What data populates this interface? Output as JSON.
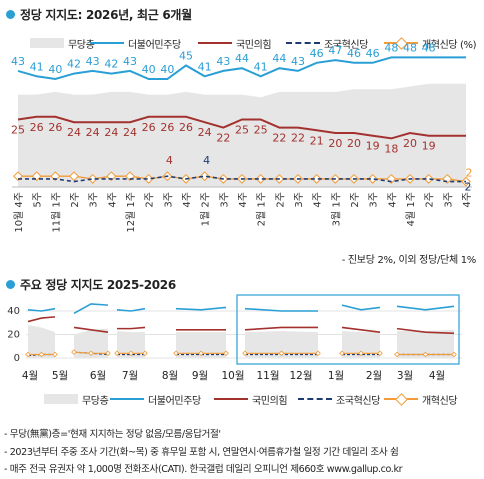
{
  "section1": {
    "title": "정당 지지도: 2026년, 최근 6개월"
  },
  "section2": {
    "title": "주요 정당 지지도 2025-2026"
  },
  "legend": [
    {
      "name": "무당층",
      "color": "#e6e6e6",
      "style": "area"
    },
    {
      "name": "더불어민주당",
      "color": "#2a9fd6",
      "style": "line"
    },
    {
      "name": "국민의힘",
      "color": "#a3322f",
      "style": "line"
    },
    {
      "name": "조국혁신당",
      "color": "#1f3b73",
      "style": "dashed"
    },
    {
      "name": "개혁신당 (%)",
      "color": "#f29b38",
      "style": "marker"
    }
  ],
  "legend2": [
    "무당층",
    "더불어민주당",
    "국민의힘",
    "조국혁신당",
    "개혁신당"
  ],
  "note": "- 진보당 2%, 이외 정당/단체 1%",
  "footnotes": [
    "- 무당(無黨)층='현재 지지하는 정당 없음/모름/응답거절'",
    "- 2023년부터 주중 조사 기간(화~목) 중 휴무일 포함 시, 연말연시·여름휴가철 일정 기간 데일리 조사 쉼",
    "- 매주 전국 유권자 약 1,000명 전화조사(CATI). 한국갤럽 데일리 오피니언 제660호 www.gallup.co.kr"
  ],
  "chart_data": [
    {
      "type": "line",
      "title": "정당 지지도: 2026년, 최근 6개월",
      "x": [
        "10월 4주",
        "5주",
        "11월 1주",
        "2주",
        "3주",
        "4주",
        "12월 1주",
        "2주",
        "3주",
        "4주",
        "1월 2주",
        "3주",
        "4주",
        "2월 1주",
        "2주",
        "3주",
        "4주",
        "3월 1주",
        "2주",
        "3주",
        "4주",
        "4월 1주",
        "2주",
        "3주",
        "4주"
      ],
      "x_ticks": [
        {
          "index": 0,
          "label": "10월 4주"
        },
        {
          "index": 1,
          "label": "5주"
        },
        {
          "index": 2,
          "label": "11월 1주"
        },
        {
          "index": 3,
          "label": "2주"
        },
        {
          "index": 4,
          "label": "3주"
        },
        {
          "index": 5,
          "label": "4주"
        },
        {
          "index": 6,
          "label": "12월 1주"
        },
        {
          "index": 7,
          "label": "2주"
        },
        {
          "index": 8,
          "label": "3주"
        },
        {
          "index": 9,
          "label": "4주"
        },
        {
          "index": 10,
          "label": "1월 2주"
        },
        {
          "index": 11,
          "label": "3주"
        },
        {
          "index": 12,
          "label": "4주"
        },
        {
          "index": 13,
          "label": "2월 1주"
        },
        {
          "index": 14,
          "label": "2주"
        },
        {
          "index": 15,
          "label": "3주"
        },
        {
          "index": 16,
          "label": "4주"
        },
        {
          "index": 17,
          "label": "3월 1주"
        },
        {
          "index": 18,
          "label": "2주"
        },
        {
          "index": 19,
          "label": "3주"
        },
        {
          "index": 20,
          "label": "4주"
        },
        {
          "index": 21,
          "label": "4월 1주"
        },
        {
          "index": 22,
          "label": "2주"
        },
        {
          "index": 23,
          "label": "3주"
        },
        {
          "index": 24,
          "label": "4주"
        }
      ],
      "series": [
        {
          "name": "무당층",
          "color": "#e6e6e6",
          "values": [
            22,
            22,
            23,
            22,
            22,
            23,
            23,
            22,
            22,
            23,
            22,
            22,
            22,
            21,
            23,
            23,
            23,
            23,
            24,
            24,
            24,
            25,
            26,
            26,
            26
          ]
        },
        {
          "name": "더불어민주당",
          "color": "#2a9fd6",
          "values": [
            43,
            41,
            40,
            42,
            43,
            42,
            43,
            40,
            40,
            45,
            41,
            43,
            44,
            41,
            44,
            43,
            46,
            47,
            46,
            46,
            48,
            48,
            48,
            48,
            48
          ],
          "labeled_values": [
            43,
            41,
            40,
            42,
            43,
            42,
            43,
            40,
            40,
            45,
            41,
            43,
            44,
            41,
            44,
            43,
            46,
            47,
            46,
            46,
            48,
            48,
            48
          ]
        },
        {
          "name": "국민의힘",
          "color": "#a3322f",
          "values": [
            25,
            26,
            26,
            24,
            24,
            24,
            24,
            26,
            26,
            26,
            24,
            22,
            25,
            25,
            22,
            22,
            21,
            20,
            20,
            19,
            18,
            20,
            19,
            19,
            19
          ],
          "labeled_values": [
            25,
            26,
            26,
            24,
            24,
            24,
            24,
            26,
            26,
            26,
            24,
            22,
            25,
            25,
            22,
            22,
            21,
            20,
            20,
            19,
            18,
            20,
            19
          ]
        },
        {
          "name": "조국혁신당",
          "color": "#1f3b73",
          "values": [
            3,
            3,
            3,
            2,
            3,
            3,
            3,
            3,
            4,
            3,
            4,
            3,
            3,
            3,
            3,
            3,
            3,
            3,
            3,
            3,
            2,
            3,
            3,
            2,
            2
          ],
          "labeled_values": [
            {
              "index": 8,
              "value": 4
            },
            {
              "index": 10,
              "value": 4
            }
          ]
        },
        {
          "name": "개혁신당",
          "color": "#f29b38",
          "values": [
            4,
            4,
            4,
            4,
            3,
            4,
            4,
            3,
            4,
            3,
            4,
            3,
            3,
            3,
            3,
            3,
            3,
            3,
            3,
            3,
            3,
            3,
            3,
            3,
            2
          ],
          "labeled_values": [
            {
              "index": 24,
              "value": 2
            }
          ]
        }
      ],
      "ylim": [
        0,
        55
      ]
    },
    {
      "type": "line",
      "title": "주요 정당 지지도 2025-2026",
      "x_ticks": [
        "4월",
        "5월",
        "6월",
        "7월",
        "8월",
        "9월",
        "10월",
        "11월",
        "12월",
        "1월",
        "2월",
        "3월",
        "4월"
      ],
      "y_ticks": [
        0,
        20,
        40
      ],
      "ylim": [
        0,
        50
      ],
      "highlight": "최근 6개월 (10월 4주~4월 4주)",
      "series": [
        {
          "name": "무당층",
          "color": "#e6e6e6",
          "values": [
            [
              0,
              28
            ],
            [
              1,
              26
            ],
            [
              2,
              22
            ],
            [
              3,
              20
            ],
            [
              4,
              24
            ],
            [
              5,
              25
            ],
            [
              6,
              23
            ],
            [
              7,
              22
            ],
            [
              8,
              22
            ],
            [
              9,
              22
            ],
            [
              10,
              22
            ],
            [
              11,
              22
            ],
            [
              12,
              22
            ],
            [
              13,
              23
            ],
            [
              14,
              22
            ],
            [
              15,
              23
            ],
            [
              16,
              22
            ],
            [
              17,
              22
            ],
            [
              18,
              23
            ],
            [
              19,
              23
            ],
            [
              20,
              24
            ],
            [
              21,
              24
            ],
            [
              22,
              25
            ],
            [
              23,
              26
            ],
            [
              24,
              26
            ]
          ]
        },
        {
          "name": "더불어민주당",
          "color": "#2a9fd6",
          "values": [
            [
              0,
              41
            ],
            [
              1,
              40
            ],
            [
              2,
              42
            ],
            [
              3,
              38
            ],
            [
              4,
              46
            ],
            [
              5,
              45
            ],
            [
              6,
              41
            ],
            [
              7,
              40
            ],
            [
              8,
              42
            ],
            [
              9,
              42
            ],
            [
              10,
              41
            ],
            [
              11,
              43
            ],
            [
              12,
              42
            ],
            [
              13,
              40
            ],
            [
              14,
              40
            ],
            [
              15,
              45
            ],
            [
              16,
              41
            ],
            [
              17,
              43
            ],
            [
              18,
              44
            ],
            [
              19,
              41
            ],
            [
              20,
              44
            ],
            [
              21,
              46
            ],
            [
              22,
              47
            ],
            [
              23,
              48
            ],
            [
              24,
              48
            ]
          ]
        },
        {
          "name": "국민의힘",
          "color": "#a3322f",
          "values": [
            [
              0,
              31
            ],
            [
              1,
              34
            ],
            [
              2,
              35
            ],
            [
              3,
              26
            ],
            [
              4,
              24
            ],
            [
              5,
              22
            ],
            [
              6,
              25
            ],
            [
              7,
              25
            ],
            [
              8,
              26
            ],
            [
              9,
              24
            ],
            [
              10,
              24
            ],
            [
              11,
              24
            ],
            [
              12,
              24
            ],
            [
              13,
              26
            ],
            [
              14,
              26
            ],
            [
              15,
              26
            ],
            [
              16,
              24
            ],
            [
              17,
              22
            ],
            [
              18,
              25
            ],
            [
              19,
              22
            ],
            [
              20,
              21
            ],
            [
              21,
              20
            ],
            [
              22,
              20
            ],
            [
              23,
              19
            ],
            [
              24,
              19
            ]
          ]
        },
        {
          "name": "조국혁신당",
          "color": "#1f3b73",
          "values": [
            [
              0,
              2
            ],
            [
              1,
              3
            ],
            [
              2,
              3
            ],
            [
              3,
              5
            ],
            [
              4,
              4
            ],
            [
              5,
              3
            ],
            [
              6,
              3
            ],
            [
              7,
              3
            ],
            [
              8,
              3
            ],
            [
              9,
              3
            ],
            [
              10,
              3
            ],
            [
              11,
              3
            ],
            [
              12,
              3
            ],
            [
              13,
              3
            ],
            [
              14,
              3
            ],
            [
              15,
              3
            ],
            [
              16,
              3
            ],
            [
              17,
              3
            ],
            [
              18,
              3
            ],
            [
              19,
              3
            ],
            [
              20,
              3
            ],
            [
              21,
              3
            ],
            [
              22,
              3
            ],
            [
              23,
              2
            ],
            [
              24,
              2
            ]
          ]
        },
        {
          "name": "개혁신당",
          "color": "#f29b38",
          "values": [
            [
              0,
              3
            ],
            [
              1,
              3
            ],
            [
              2,
              3
            ],
            [
              3,
              5
            ],
            [
              4,
              4
            ],
            [
              5,
              4
            ],
            [
              6,
              4
            ],
            [
              7,
              4
            ],
            [
              8,
              4
            ],
            [
              9,
              4
            ],
            [
              10,
              4
            ],
            [
              11,
              4
            ],
            [
              12,
              4
            ],
            [
              13,
              4
            ],
            [
              14,
              4
            ],
            [
              15,
              4
            ],
            [
              16,
              4
            ],
            [
              17,
              4
            ],
            [
              18,
              3
            ],
            [
              19,
              3
            ],
            [
              20,
              3
            ],
            [
              21,
              3
            ],
            [
              22,
              3
            ],
            [
              23,
              3
            ],
            [
              24,
              2
            ]
          ]
        }
      ]
    }
  ]
}
